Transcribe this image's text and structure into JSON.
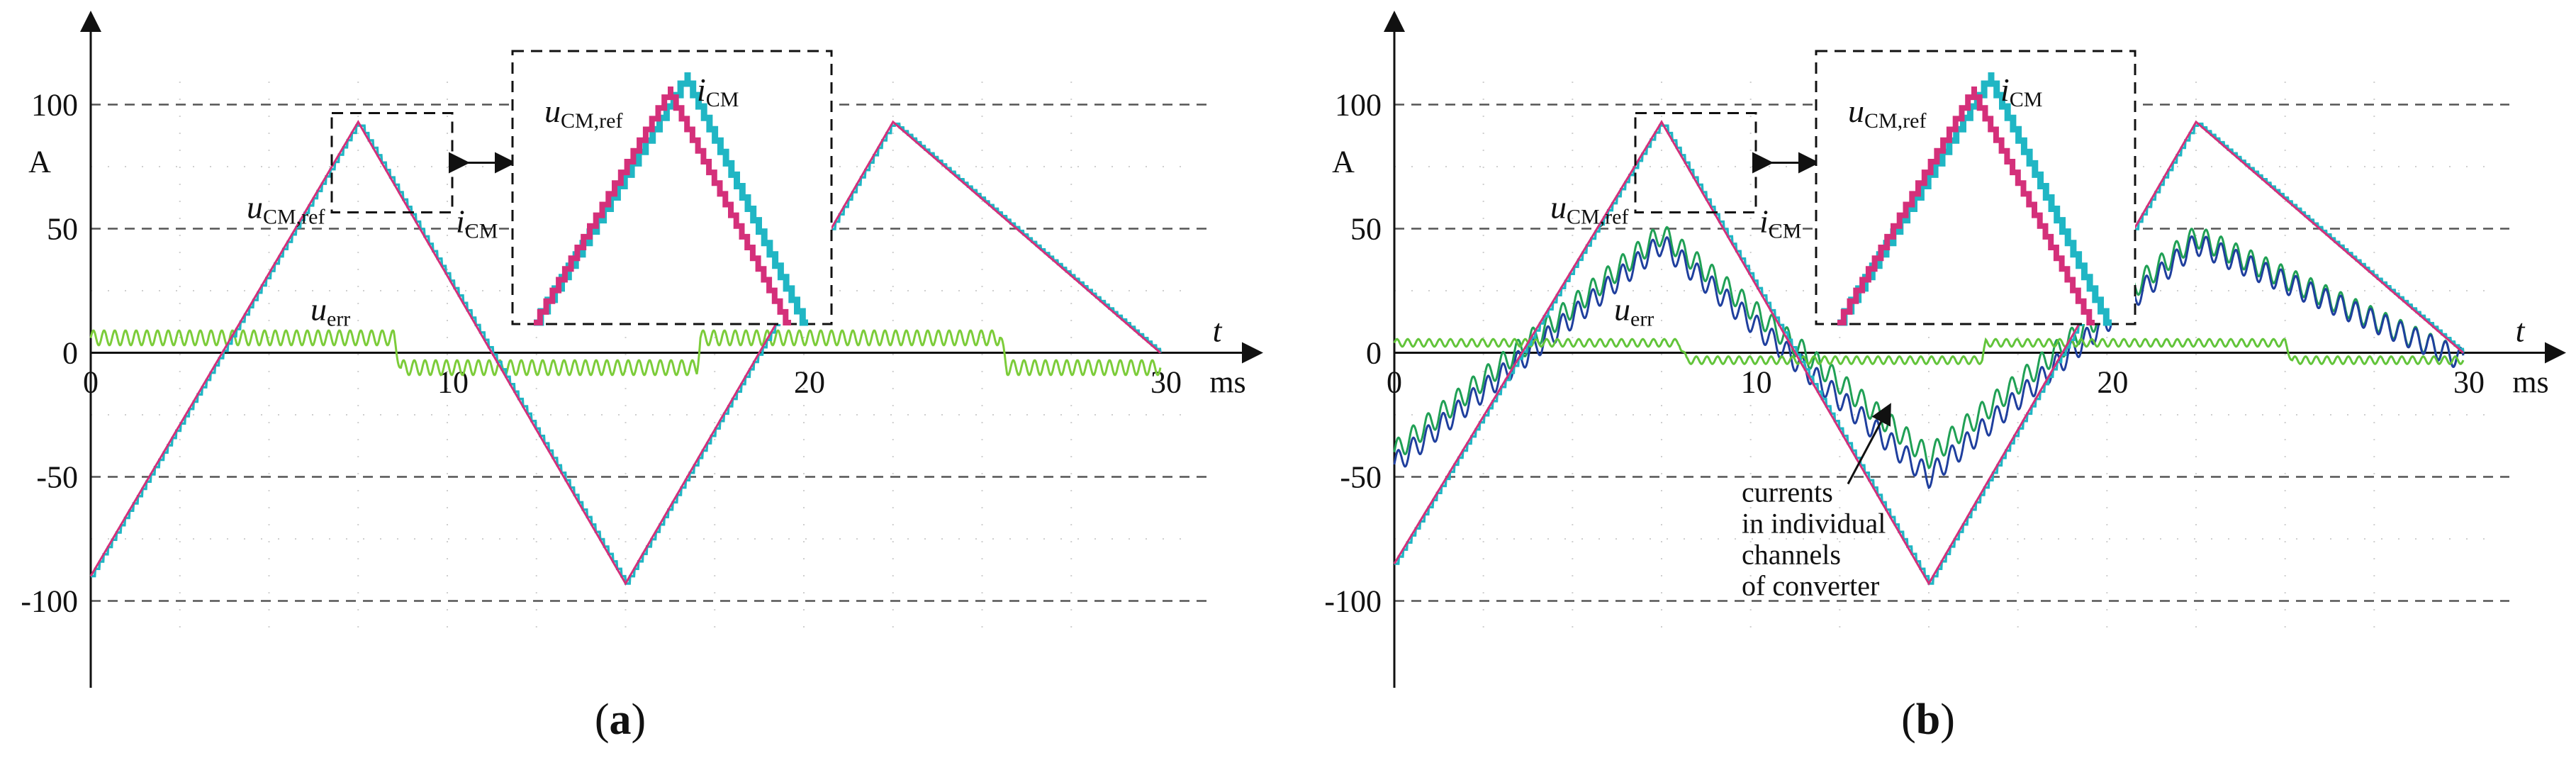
{
  "chart_data": [
    {
      "type": "line",
      "panel_label": "(a)",
      "panel_letter": "a",
      "title": "",
      "xlabel": "t",
      "x_unit": "ms",
      "ylabel": "",
      "y_unit": "A",
      "xlim": [
        0,
        30
      ],
      "ylim": [
        -115,
        115
      ],
      "x_ticks": [
        0,
        10,
        20,
        30
      ],
      "y_ticks": [
        -100,
        -50,
        0,
        50,
        100
      ],
      "grid": "dashed at ±50, ±100",
      "series": [
        {
          "name": "uCM,ref",
          "label_main": "u",
          "label_sub": "CM,ref",
          "color": "#d4307a",
          "x": [
            0,
            7.5,
            15,
            22.5,
            30
          ],
          "y": [
            -90,
            93,
            -93,
            93,
            0
          ]
        },
        {
          "name": "iCM",
          "label_main": "i",
          "label_sub": "CM",
          "color": "#20b6c4",
          "x": [
            0,
            7.5,
            15,
            22.5,
            30
          ],
          "y": [
            -90,
            93,
            -93,
            93,
            0
          ]
        },
        {
          "name": "uerr",
          "label_main": "u",
          "label_sub": "err",
          "color": "#7ccc3a",
          "x": [
            0,
            8.5,
            8.7,
            17,
            17.1,
            25.5,
            25.7,
            30
          ],
          "y": [
            6,
            6,
            -6,
            -6,
            6,
            6,
            -6,
            -6
          ]
        }
      ]
    },
    {
      "type": "line",
      "panel_label": "(b)",
      "panel_letter": "b",
      "title": "",
      "xlabel": "t",
      "x_unit": "ms",
      "ylabel": "",
      "y_unit": "A",
      "xlim": [
        0,
        30
      ],
      "ylim": [
        -115,
        115
      ],
      "x_ticks": [
        0,
        10,
        20,
        30
      ],
      "y_ticks": [
        -100,
        -50,
        0,
        50,
        100
      ],
      "grid": "dashed at ±50, ±100",
      "annotation": [
        "currents",
        "in individual",
        "channels",
        "of converter"
      ],
      "series": [
        {
          "name": "uCM,ref",
          "label_main": "u",
          "label_sub": "CM,ref",
          "color": "#d4307a",
          "x": [
            0,
            7.5,
            15,
            22.5,
            30
          ],
          "y": [
            -85,
            93,
            -93,
            93,
            0
          ]
        },
        {
          "name": "iCM",
          "label_main": "i",
          "label_sub": "CM",
          "color": "#20b6c4",
          "x": [
            0,
            7.5,
            15,
            22.5,
            30
          ],
          "y": [
            -85,
            93,
            -93,
            93,
            0
          ]
        },
        {
          "name": "uerr",
          "label_main": "u",
          "label_sub": "err",
          "color": "#62c43a",
          "x": [
            0,
            8,
            8.2,
            16.5,
            16.6,
            25,
            25.2,
            30
          ],
          "y": [
            4,
            4,
            -3,
            -3,
            4,
            4,
            -3,
            -3
          ]
        },
        {
          "color": "#20a055",
          "x": [
            0,
            7.5,
            15,
            22.5,
            30
          ],
          "y": [
            -40,
            48,
            -42,
            47,
            -3
          ]
        },
        {
          "color": "#1f3f9e",
          "x": [
            0,
            7.5,
            15,
            22.5,
            30
          ],
          "y": [
            -45,
            44,
            -50,
            44,
            -3
          ]
        }
      ]
    }
  ]
}
